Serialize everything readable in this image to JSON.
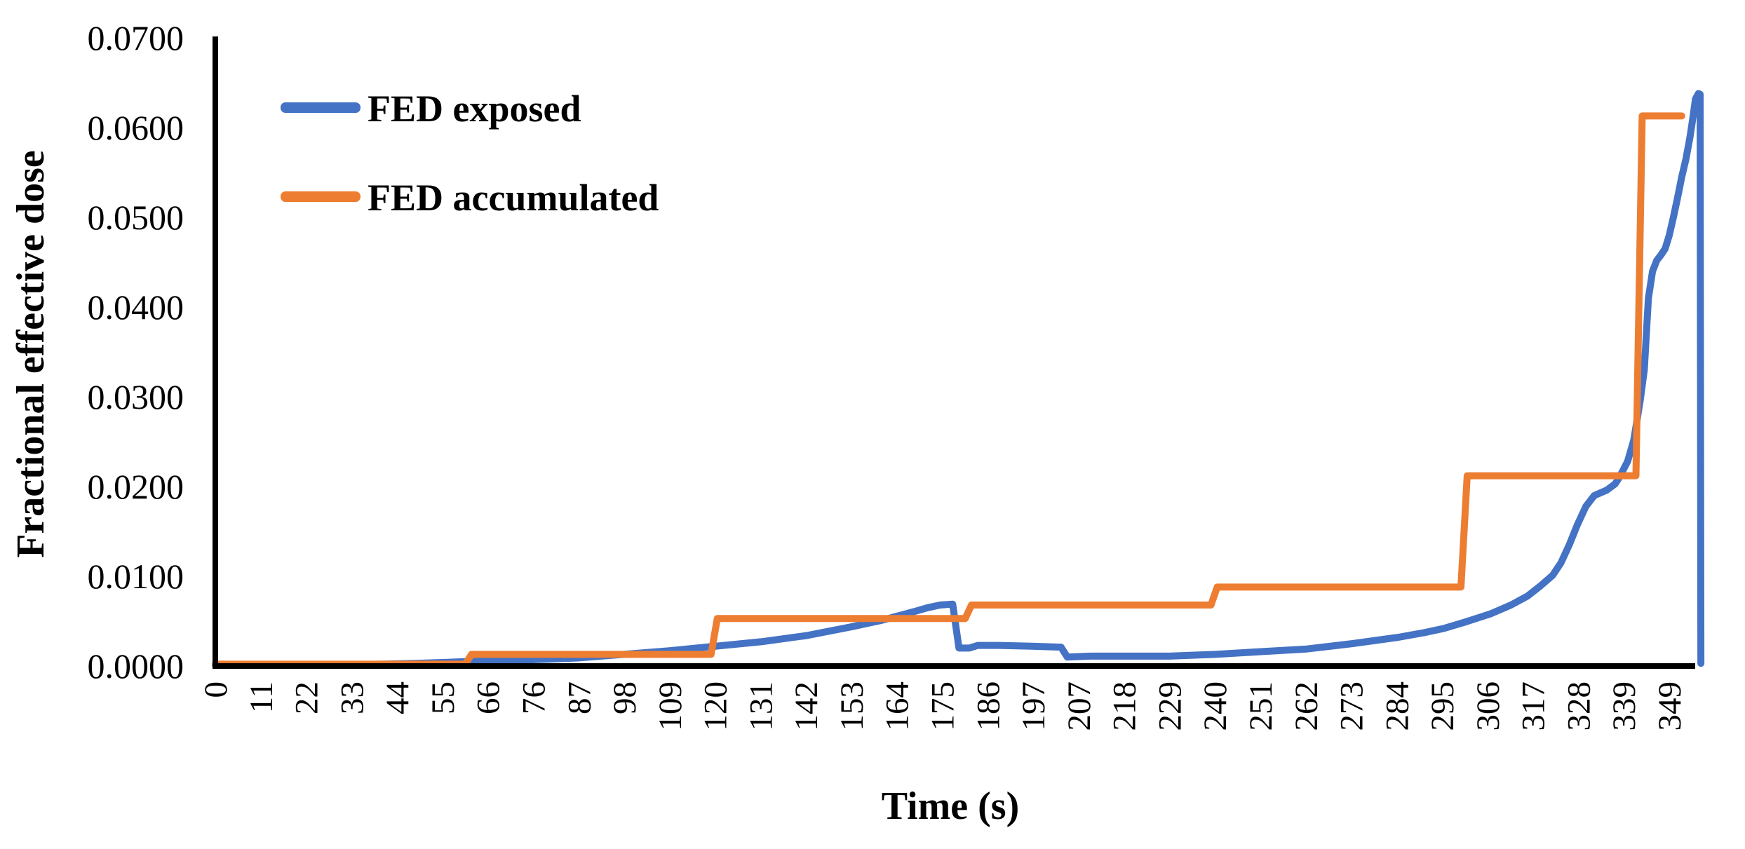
{
  "figure": {
    "background_color": "#ffffff",
    "axis_color": "#000000"
  },
  "y_axis": {
    "title": "Fractional effective dose",
    "tick_labels": [
      "0.0000",
      "0.0100",
      "0.0200",
      "0.0300",
      "0.0400",
      "0.0500",
      "0.0600",
      "0.0700"
    ],
    "min": 0.0,
    "max": 0.07
  },
  "x_axis": {
    "title": "Time (s)",
    "tick_labels": [
      "0",
      "11",
      "22",
      "33",
      "44",
      "55",
      "66",
      "76",
      "87",
      "98",
      "109",
      "120",
      "131",
      "142",
      "153",
      "164",
      "175",
      "186",
      "197",
      "207",
      "218",
      "229",
      "240",
      "251",
      "262",
      "273",
      "284",
      "295",
      "306",
      "317",
      "328",
      "339",
      "349"
    ]
  },
  "legend": {
    "items": [
      {
        "label": "FED exposed",
        "color": "#4472C4"
      },
      {
        "label": "FED accumulated",
        "color": "#ED7D31"
      }
    ]
  },
  "chart_data": {
    "type": "line",
    "title": "",
    "xlabel": "Time (s)",
    "ylabel": "Fractional effective dose",
    "xlim": [
      0,
      357
    ],
    "ylim": [
      0,
      0.07
    ],
    "grid": false,
    "legend_position": "top-left-inside",
    "series": [
      {
        "name": "FED exposed",
        "color": "#4472C4",
        "points": [
          [
            0,
            0.0001
          ],
          [
            20,
            0.0001
          ],
          [
            40,
            0.0002
          ],
          [
            48,
            0.0003
          ],
          [
            55,
            0.0004
          ],
          [
            66,
            0.0006
          ],
          [
            76,
            0.0007
          ],
          [
            87,
            0.0009
          ],
          [
            98,
            0.0013
          ],
          [
            109,
            0.0017
          ],
          [
            120,
            0.0022
          ],
          [
            131,
            0.0027
          ],
          [
            142,
            0.0034
          ],
          [
            153,
            0.0044
          ],
          [
            160,
            0.0051
          ],
          [
            164,
            0.0056
          ],
          [
            168,
            0.0061
          ],
          [
            171,
            0.0065
          ],
          [
            174,
            0.0068
          ],
          [
            177,
            0.0069
          ],
          [
            178.5,
            0.002
          ],
          [
            181,
            0.002
          ],
          [
            183,
            0.0023
          ],
          [
            188,
            0.0023
          ],
          [
            196,
            0.0022
          ],
          [
            203,
            0.0021
          ],
          [
            204.5,
            0.001
          ],
          [
            210,
            0.0011
          ],
          [
            220,
            0.0011
          ],
          [
            229,
            0.0011
          ],
          [
            240,
            0.0013
          ],
          [
            251,
            0.0016
          ],
          [
            262,
            0.0019
          ],
          [
            273,
            0.0025
          ],
          [
            284,
            0.0032
          ],
          [
            290,
            0.0037
          ],
          [
            295,
            0.0042
          ],
          [
            300,
            0.0049
          ],
          [
            306,
            0.0058
          ],
          [
            311,
            0.0068
          ],
          [
            315,
            0.0078
          ],
          [
            318,
            0.0089
          ],
          [
            321,
            0.0101
          ],
          [
            323,
            0.0115
          ],
          [
            325,
            0.0135
          ],
          [
            327,
            0.0158
          ],
          [
            329,
            0.0178
          ],
          [
            331,
            0.019
          ],
          [
            334,
            0.0196
          ],
          [
            336,
            0.0203
          ],
          [
            337,
            0.021
          ],
          [
            339,
            0.0228
          ],
          [
            340.5,
            0.0252
          ],
          [
            342,
            0.0295
          ],
          [
            343,
            0.033
          ],
          [
            344,
            0.041
          ],
          [
            345,
            0.044
          ],
          [
            346,
            0.0452
          ],
          [
            347,
            0.0458
          ],
          [
            348,
            0.0465
          ],
          [
            349,
            0.048
          ],
          [
            350,
            0.05
          ],
          [
            351,
            0.0522
          ],
          [
            352,
            0.0545
          ],
          [
            353,
            0.0565
          ],
          [
            354,
            0.059
          ],
          [
            354.7,
            0.0612
          ],
          [
            355.3,
            0.0632
          ],
          [
            356,
            0.0638
          ],
          [
            356.4,
            0.0637
          ],
          [
            356.6,
            0.0003
          ]
        ]
      },
      {
        "name": "FED accumulated",
        "color": "#ED7D31",
        "points": [
          [
            0,
            0.0002
          ],
          [
            60,
            0.0002
          ],
          [
            61.5,
            0.0013
          ],
          [
            119,
            0.0013
          ],
          [
            120.5,
            0.0053
          ],
          [
            180,
            0.0053
          ],
          [
            181.5,
            0.0068
          ],
          [
            239,
            0.0068
          ],
          [
            240.5,
            0.0088
          ],
          [
            299,
            0.0088
          ],
          [
            300.5,
            0.0212
          ],
          [
            341,
            0.0212
          ],
          [
            342.5,
            0.0613
          ],
          [
            352,
            0.0613
          ]
        ]
      }
    ]
  }
}
